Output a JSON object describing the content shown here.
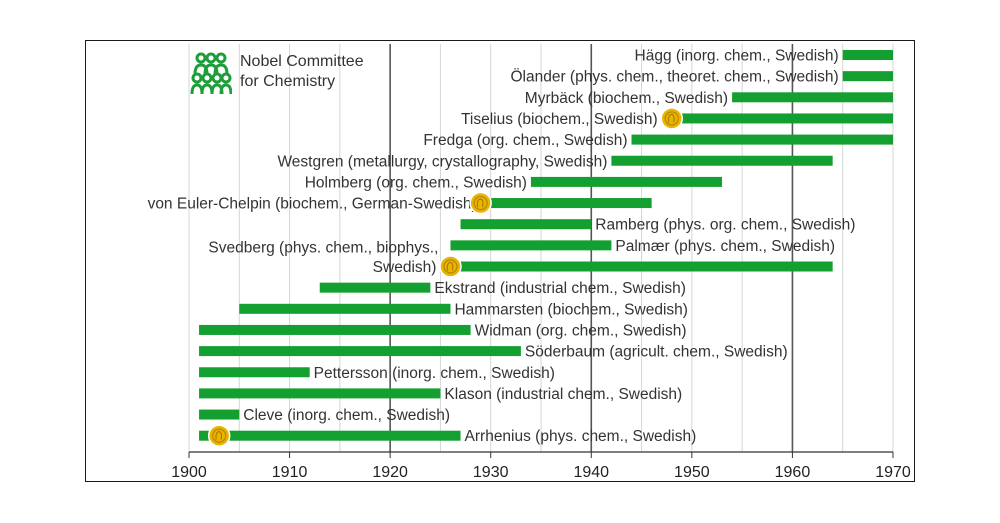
{
  "committee": {
    "name_line1": "Nobel Committee",
    "name_line2": "for Chemistry",
    "logo_icon": "people-group-icon",
    "logo_color": "#1e9e3a"
  },
  "colors": {
    "bar": "#13a030",
    "medal": "#e8b400",
    "grid": "#777777"
  },
  "chart_data": {
    "type": "bar",
    "orientation": "horizontal",
    "title": "",
    "xlabel": "",
    "ylabel": "",
    "xlim": [
      1900,
      1970
    ],
    "xticks": [
      1900,
      1910,
      1920,
      1930,
      1940,
      1950,
      1960,
      1970
    ],
    "grid": "vertical major lines at 1920, 1940, 1960",
    "legend": "none",
    "members": [
      {
        "label": "Hägg (inorg. chem., Swedish)",
        "start": 1965,
        "end": 1970,
        "label_side": "left"
      },
      {
        "label": "Ölander (phys. chem., theoret. chem., Swedish)",
        "start": 1965,
        "end": 1970,
        "label_side": "left"
      },
      {
        "label": "Myrbäck (biochem., Swedish)",
        "start": 1954,
        "end": 1970,
        "label_side": "left"
      },
      {
        "label": "Tiselius (biochem., Swedish)",
        "start": 1947,
        "end": 1970,
        "label_side": "left",
        "nobel": 1948
      },
      {
        "label": "Fredga (org. chem., Swedish)",
        "start": 1944,
        "end": 1970,
        "label_side": "left"
      },
      {
        "label": "Westgren (metallurgy, crystallography, Swedish)",
        "start": 1942,
        "end": 1964,
        "label_side": "left"
      },
      {
        "label": "Holmberg (org. chem., Swedish)",
        "start": 1934,
        "end": 1953,
        "label_side": "left"
      },
      {
        "label": "von Euler-Chelpin (biochem., German-Swedish)",
        "start": 1929,
        "end": 1946,
        "label_side": "left",
        "nobel": 1929
      },
      {
        "label": "Ramberg (phys. org. chem., Swedish)",
        "start": 1927,
        "end": 1940,
        "label_side": "right"
      },
      {
        "label": "Palmær (phys. chem., Swedish)",
        "start": 1926,
        "end": 1942,
        "label_side": "right"
      },
      {
        "label_lines": [
          "Svedberg (phys. chem., biophys.,",
          "Swedish)"
        ],
        "start": 1925,
        "end": 1964,
        "label_side": "left",
        "nobel": 1926
      },
      {
        "label": "Ekstrand (industrial chem., Swedish)",
        "start": 1913,
        "end": 1924,
        "label_side": "right"
      },
      {
        "label": "Hammarsten (biochem., Swedish)",
        "start": 1905,
        "end": 1926,
        "label_side": "right"
      },
      {
        "label": "Widman (org. chem., Swedish)",
        "start": 1901,
        "end": 1928,
        "label_side": "right"
      },
      {
        "label": "Söderbaum (agricult. chem., Swedish)",
        "start": 1901,
        "end": 1933,
        "label_side": "right"
      },
      {
        "label": "Pettersson (inorg. chem., Swedish)",
        "start": 1901,
        "end": 1912,
        "label_side": "right"
      },
      {
        "label": "Klason (industrial chem., Swedish)",
        "start": 1901,
        "end": 1925,
        "label_side": "right"
      },
      {
        "label": "Cleve (inorg. chem., Swedish)",
        "start": 1901,
        "end": 1905,
        "label_side": "right"
      },
      {
        "label": "Arrhenius (phys. chem., Swedish)",
        "start": 1901,
        "end": 1927,
        "label_side": "right",
        "nobel": 1903
      }
    ]
  }
}
